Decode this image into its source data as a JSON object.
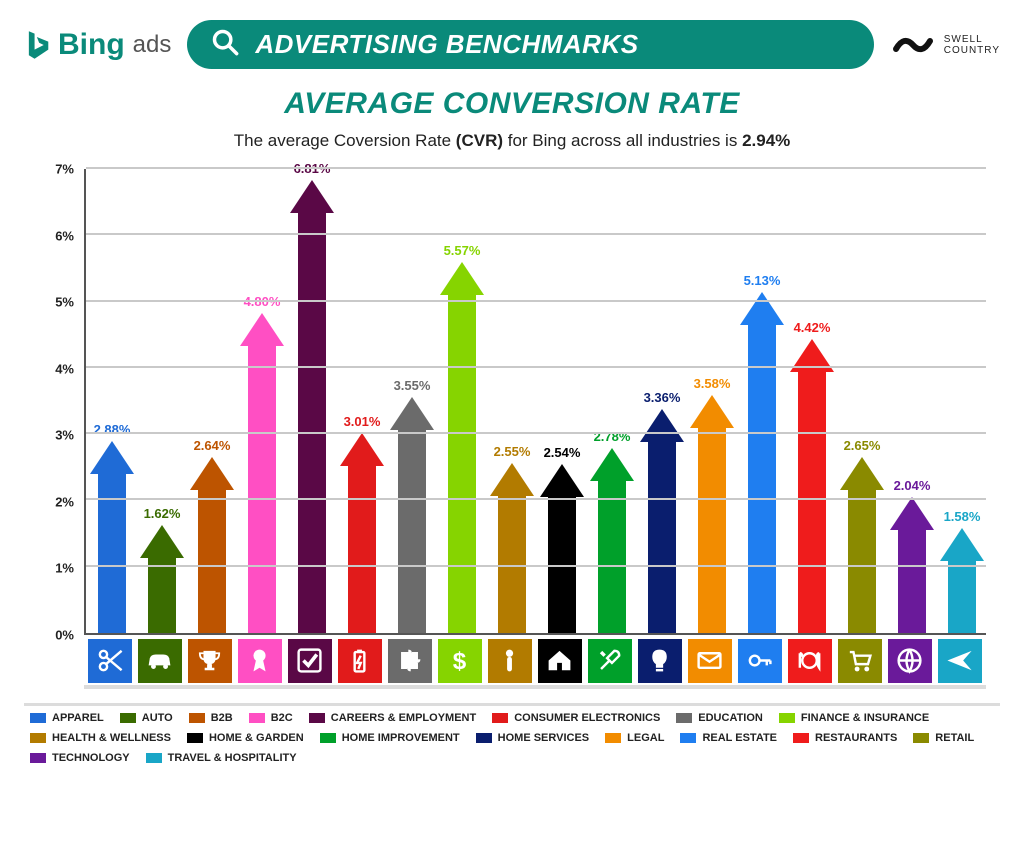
{
  "header": {
    "bing_word": "Bing",
    "bing_ads": "ads",
    "title": "ADVERTISING BENCHMARKS",
    "swell_line1": "SWELL",
    "swell_line2": "COUNTRY",
    "title_bg": "#0a8a7a",
    "title_text_color": "#ffffff"
  },
  "chart": {
    "title": "AVERAGE CONVERSION RATE",
    "title_color": "#0a8a7a",
    "subtitle_prefix": "The average Coversion Rate ",
    "subtitle_bold1": "(CVR)",
    "subtitle_mid": " for Bing across all industries is ",
    "subtitle_bold2": "2.94%",
    "y_axis": {
      "min": 0,
      "max": 7,
      "step": 1,
      "suffix": "%"
    },
    "grid_color": "#c9c9c9",
    "axis_color": "#555555",
    "background": "#ffffff",
    "label_fontsize": 13,
    "bars": [
      {
        "label": "APPAREL",
        "value": 2.88,
        "value_label": "2.88%",
        "color": "#1f6bd6",
        "icon": "scissors"
      },
      {
        "label": "AUTO",
        "value": 1.62,
        "value_label": "1.62%",
        "color": "#3a6b00",
        "icon": "car"
      },
      {
        "label": "B2B",
        "value": 2.64,
        "value_label": "2.64%",
        "color": "#bd5400",
        "icon": "trophy"
      },
      {
        "label": "B2C",
        "value": 4.8,
        "value_label": "4.80%",
        "color": "#ff4fc3",
        "icon": "ribbon"
      },
      {
        "label": "CAREERS & EMPLOYMENT",
        "value": 6.81,
        "value_label": "6.81%",
        "color": "#5a0846",
        "icon": "check"
      },
      {
        "label": "CONSUMER ELECTRONICS",
        "value": 3.01,
        "value_label": "3.01%",
        "color": "#e11b1b",
        "icon": "battery"
      },
      {
        "label": "EDUCATION",
        "value": 3.55,
        "value_label": "3.55%",
        "color": "#6b6b6b",
        "icon": "puzzle"
      },
      {
        "label": "FINANCE & INSURANCE",
        "value": 5.57,
        "value_label": "5.57%",
        "color": "#86d400",
        "icon": "dollar"
      },
      {
        "label": "HEALTH & WELLNESS",
        "value": 2.55,
        "value_label": "2.55%",
        "color": "#b27b00",
        "icon": "person"
      },
      {
        "label": "HOME & GARDEN",
        "value": 2.54,
        "value_label": "2.54%",
        "color": "#000000",
        "icon": "house"
      },
      {
        "label": "HOME IMPROVEMENT",
        "value": 2.78,
        "value_label": "2.78%",
        "color": "#00a02a",
        "icon": "tools"
      },
      {
        "label": "HOME SERVICES",
        "value": 3.36,
        "value_label": "3.36%",
        "color": "#0a1e6e",
        "icon": "bulb"
      },
      {
        "label": "LEGAL",
        "value": 3.58,
        "value_label": "3.58%",
        "color": "#f28c00",
        "icon": "mail"
      },
      {
        "label": "REAL ESTATE",
        "value": 5.13,
        "value_label": "5.13%",
        "color": "#1f7ef0",
        "icon": "key"
      },
      {
        "label": "RESTAURANTS",
        "value": 4.42,
        "value_label": "4.42%",
        "color": "#ef1c1c",
        "icon": "dining"
      },
      {
        "label": "RETAIL",
        "value": 2.65,
        "value_label": "2.65%",
        "color": "#8a8a00",
        "icon": "cart"
      },
      {
        "label": "TECHNOLOGY",
        "value": 2.04,
        "value_label": "2.04%",
        "color": "#6a1a9a",
        "icon": "globe"
      },
      {
        "label": "TRAVEL & HOSPITALITY",
        "value": 1.58,
        "value_label": "1.58%",
        "color": "#19a6c7",
        "icon": "plane"
      }
    ]
  }
}
